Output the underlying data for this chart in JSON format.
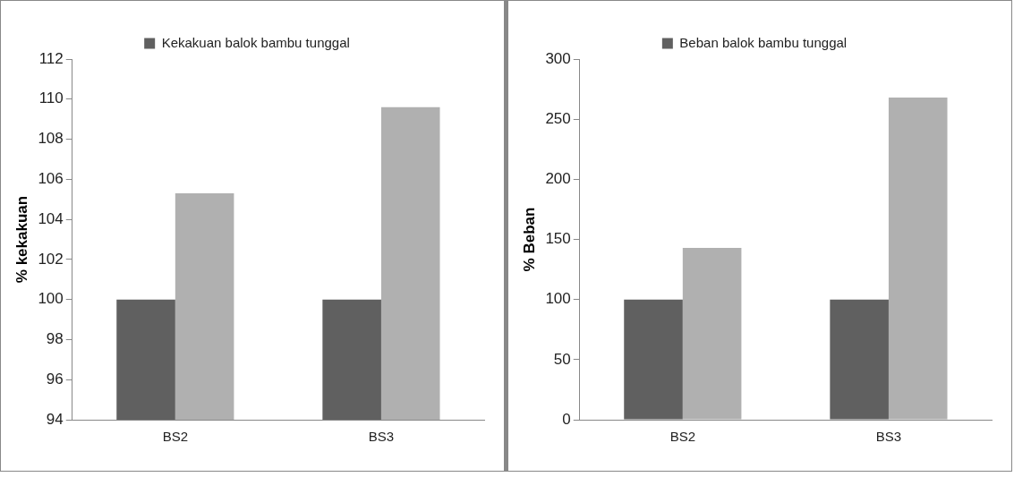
{
  "chart_data": [
    {
      "type": "bar",
      "categories": [
        "BS2",
        "BS3"
      ],
      "ylabel": "% kekakuan",
      "series": [
        {
          "name": "Kekakuan balok bambu tunggal",
          "color": "#606060",
          "values": [
            100,
            100
          ]
        },
        {
          "color": "#b0b0b0",
          "values": [
            105.3,
            109.6
          ]
        }
      ],
      "ylim": [
        94,
        112
      ],
      "yticks": [
        94,
        96,
        98,
        100,
        102,
        104,
        106,
        108,
        110,
        112
      ],
      "grid": false,
      "legend": "top"
    },
    {
      "type": "bar",
      "categories": [
        "BS2",
        "BS3"
      ],
      "ylabel": "% Beban",
      "series": [
        {
          "name": "Beban balok bambu tunggal",
          "color": "#606060",
          "values": [
            100,
            100
          ]
        },
        {
          "color": "#b0b0b0",
          "values": [
            143,
            268
          ]
        }
      ],
      "ylim": [
        0,
        300
      ],
      "yticks": [
        0,
        50,
        100,
        150,
        200,
        250,
        300
      ],
      "grid": false,
      "legend": "top"
    }
  ]
}
